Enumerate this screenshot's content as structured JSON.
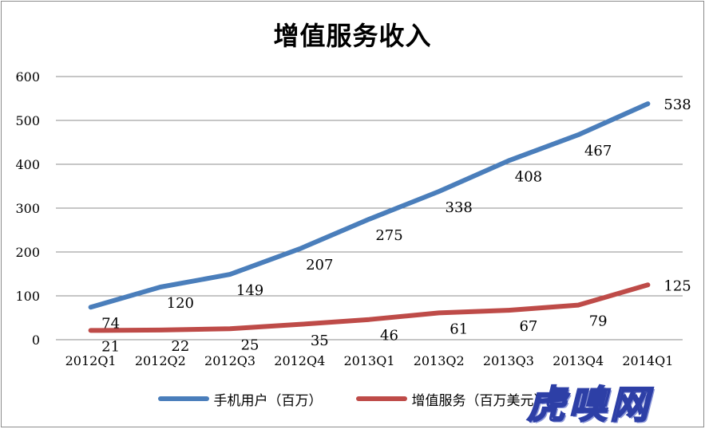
{
  "chart_data": {
    "type": "line",
    "title": "增值服务收入",
    "categories": [
      "2012Q1",
      "2012Q2",
      "2012Q3",
      "2012Q4",
      "2013Q1",
      "2013Q2",
      "2013Q3",
      "2013Q4",
      "2014Q1"
    ],
    "series": [
      {
        "name": "手机用户（百万）",
        "color": "#4a7ebb",
        "values": [
          74,
          120,
          149,
          207,
          275,
          338,
          408,
          467,
          538
        ]
      },
      {
        "name": "增值服务（百万美元）",
        "color": "#be4b48",
        "values": [
          21,
          22,
          25,
          35,
          46,
          61,
          67,
          79,
          125
        ]
      }
    ],
    "ylim": [
      0,
      600
    ],
    "yticks": [
      0,
      100,
      200,
      300,
      400,
      500,
      600
    ],
    "grid": true,
    "legend_position": "bottom"
  },
  "watermark": "虎嗅网"
}
